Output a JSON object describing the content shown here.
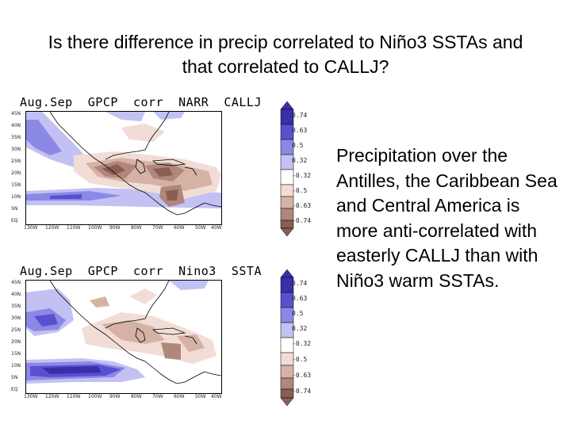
{
  "slide": {
    "title": "Is there difference in precip correlated to Niño3 SSTAs and that correlated to CALLJ?",
    "body": "Precipitation over the Antilles, the Caribbean Sea and Central America is more anti-correlated with easterly CALLJ than with Niño3 warm SSTAs."
  },
  "panels": [
    {
      "title": "Aug.Sep  GPCP  corr  NARR  CALLJ",
      "lat_labels": [
        "45N",
        "40N",
        "35N",
        "30N",
        "25N",
        "20N",
        "15N",
        "10N",
        "5N",
        "EQ"
      ],
      "lon_labels": [
        "130W",
        "120W",
        "110W",
        "100W",
        "90W",
        "80W",
        "70W",
        "60W",
        "50W",
        "40W"
      ],
      "colorbar_labels": [
        "0.74",
        "0.63",
        "0.5",
        "0.32",
        "-0.32",
        "-0.5",
        "-0.63",
        "-0.74"
      ]
    },
    {
      "title": "Aug.Sep  GPCP  corr  Nino3  SSTA",
      "lat_labels": [
        "45N",
        "40N",
        "35N",
        "30N",
        "25N",
        "20N",
        "15N",
        "10N",
        "5N",
        "EQ"
      ],
      "lon_labels": [
        "130W",
        "120W",
        "110W",
        "100W",
        "90W",
        "80W",
        "70W",
        "60W",
        "50W",
        "40W"
      ],
      "colorbar_labels": [
        "0.74",
        "0.63",
        "0.5",
        "0.32",
        "-0.32",
        "-0.5",
        "-0.63",
        "-0.74"
      ]
    }
  ],
  "colors": {
    "pos_strong": "#3a2fa8",
    "pos_mid": "#5a4fd0",
    "pos_light": "#8c88e6",
    "pos_faint": "#c3c1f3",
    "neg_faint": "#f1ddd6",
    "neg_light": "#d6b2a4",
    "neg_mid": "#b0877a",
    "neg_strong": "#8a5e52"
  }
}
